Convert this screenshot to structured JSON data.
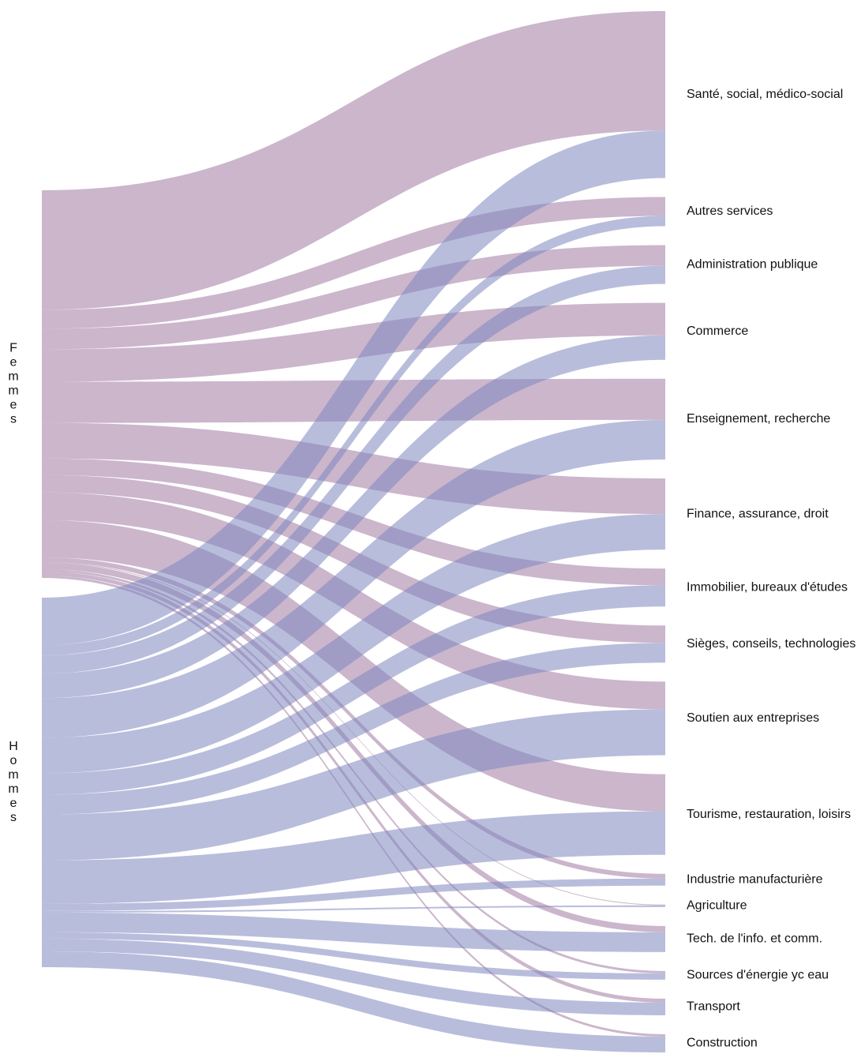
{
  "chart_data": {
    "type": "sankey",
    "categories": [
      "Santé, social, médico-social",
      "Autres services",
      "Administration publique",
      "Commerce",
      "Enseignement, recherche",
      "Finance, assurance, droit",
      "Immobilier, bureaux d'études",
      "Sièges, conseils, technologies",
      "Soutien aux entreprises",
      "Tourisme, restauration, loisirs",
      "Industrie manufacturière",
      "Agriculture",
      "Tech. de l'info. et comm.",
      "Sources d'énergie yc eau",
      "Transport",
      "Construction"
    ],
    "series": [
      {
        "name": "Femmes",
        "color": "#a07aa2",
        "values": [
          151,
          24,
          26,
          41,
          52,
          45,
          21,
          22,
          35,
          47,
          6,
          1,
          8,
          3,
          5,
          3
        ]
      },
      {
        "name": "Hommes",
        "color": "#7f86bf",
        "values": [
          60,
          13,
          23,
          31,
          50,
          45,
          27,
          25,
          58,
          55,
          9,
          2,
          25,
          8,
          16,
          20
        ]
      }
    ]
  }
}
